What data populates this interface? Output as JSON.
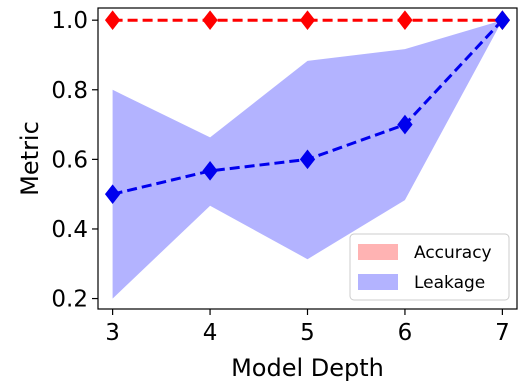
{
  "chart_data": {
    "type": "line",
    "x": [
      3,
      4,
      5,
      6,
      7
    ],
    "xlabel": "Model Depth",
    "ylabel": "Metric",
    "xlim": [
      2.85,
      7.15
    ],
    "ylim": [
      0.17,
      1.035
    ],
    "xticks": [
      "3",
      "4",
      "5",
      "6",
      "7"
    ],
    "yticks": [
      "0.2",
      "0.4",
      "0.6",
      "0.8",
      "1.0"
    ],
    "ytick_values": [
      0.2,
      0.4,
      0.6,
      0.8,
      1.0
    ],
    "grid": false,
    "legend_position": "lower-right",
    "series": [
      {
        "name": "Accuracy",
        "values": [
          1.0,
          1.0,
          1.0,
          1.0,
          1.0
        ],
        "band_lower": [
          1.0,
          1.0,
          1.0,
          1.0,
          1.0
        ],
        "band_upper": [
          1.0,
          1.0,
          1.0,
          1.0,
          1.0
        ],
        "line_color": "#ff0000",
        "band_color": "#ffb3b3",
        "marker": "diamond",
        "linestyle": "dashed"
      },
      {
        "name": "Leakage",
        "values": [
          0.5,
          0.567,
          0.6,
          0.7,
          1.0
        ],
        "band_lower": [
          0.2,
          0.467,
          0.313,
          0.483,
          1.0
        ],
        "band_upper": [
          0.8,
          0.663,
          0.883,
          0.917,
          1.0
        ],
        "line_color": "#0000ee",
        "band_color": "#b3b3ff",
        "marker": "diamond",
        "linestyle": "dashed"
      }
    ]
  }
}
